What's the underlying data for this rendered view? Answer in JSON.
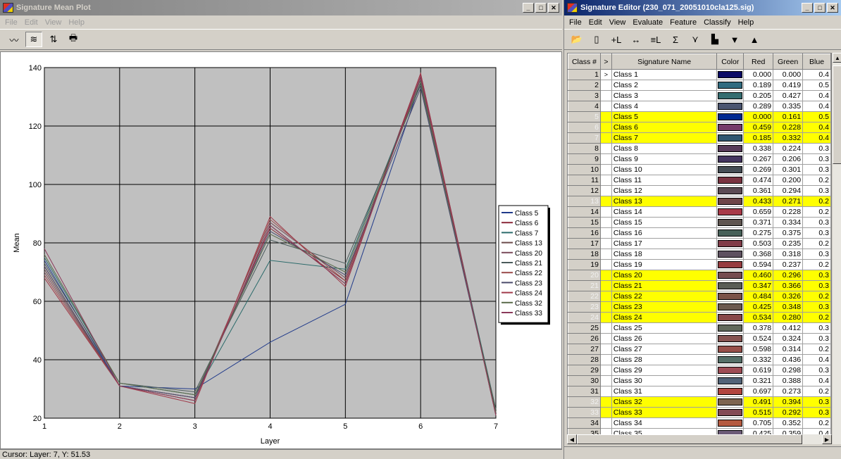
{
  "plot_window": {
    "title": "Signature Mean Plot",
    "menu": [
      "File",
      "Edit",
      "View",
      "Help"
    ],
    "toolbar": [
      {
        "icon": "single-mean-line-icon",
        "glyph": "〰"
      },
      {
        "icon": "multiple-mean-lines-icon",
        "glyph": "≋"
      },
      {
        "icon": "switch-arrows-icon",
        "glyph": "⇅"
      },
      {
        "icon": "printer-icon",
        "glyph": "🖶"
      }
    ],
    "status": "Cursor: Layer: 7, Y: 51.53"
  },
  "chart_data": {
    "type": "line",
    "xlabel": "Layer",
    "ylabel": "Mean",
    "xlim": [
      1,
      7
    ],
    "ylim": [
      20,
      140
    ],
    "x": [
      1,
      2,
      3,
      4,
      5,
      6,
      7
    ],
    "y_ticks": [
      20,
      40,
      60,
      80,
      100,
      120,
      140
    ],
    "grid": true,
    "background": "#c0c0c0",
    "legend_position": "right",
    "series": [
      {
        "name": "Class 5",
        "color": "#203a8a",
        "values": [
          74,
          31,
          30,
          46,
          59,
          135,
          22
        ]
      },
      {
        "name": "Class 6",
        "color": "#8a2a3a",
        "values": [
          72,
          31,
          27,
          85,
          67,
          138,
          22
        ]
      },
      {
        "name": "Class 7",
        "color": "#2a6a6a",
        "values": [
          75,
          32,
          28,
          74,
          71,
          136,
          23
        ]
      },
      {
        "name": "Class 13",
        "color": "#6a4a4a",
        "values": [
          71,
          31,
          26,
          86,
          66,
          137,
          21
        ]
      },
      {
        "name": "Class 20",
        "color": "#7a4a5a",
        "values": [
          70,
          31,
          27,
          87,
          68,
          136,
          22
        ]
      },
      {
        "name": "Class 21",
        "color": "#4a5a5a",
        "values": [
          73,
          32,
          29,
          81,
          73,
          134,
          23
        ]
      },
      {
        "name": "Class 22",
        "color": "#9a4a4a",
        "values": [
          69,
          31,
          26,
          88,
          67,
          137,
          21
        ]
      },
      {
        "name": "Class 23",
        "color": "#4a4a6a",
        "values": [
          72,
          31,
          27,
          84,
          69,
          133,
          22
        ]
      },
      {
        "name": "Class 24",
        "color": "#a03a4a",
        "values": [
          68,
          31,
          25,
          89,
          65,
          138,
          21
        ]
      },
      {
        "name": "Class 32",
        "color": "#5a6a4a",
        "values": [
          76,
          32,
          28,
          83,
          70,
          135,
          22
        ]
      },
      {
        "name": "Class 33",
        "color": "#8a3a5a",
        "values": [
          78,
          31,
          26,
          86,
          66,
          137,
          21
        ]
      }
    ]
  },
  "editor_window": {
    "title": "Signature Editor (230_071_20051010cla125.sig)",
    "menu": [
      "File",
      "Edit",
      "View",
      "Evaluate",
      "Feature",
      "Classify",
      "Help"
    ],
    "toolbar": [
      {
        "icon": "open-folder-icon",
        "glyph": "📂"
      },
      {
        "icon": "new-document-icon",
        "glyph": "▯"
      },
      {
        "icon": "add-signature-icon",
        "glyph": "+L"
      },
      {
        "icon": "replace-signature-icon",
        "glyph": "↔"
      },
      {
        "icon": "merge-signatures-icon",
        "glyph": "≡L"
      },
      {
        "icon": "statistics-icon",
        "glyph": "Σ"
      },
      {
        "icon": "mean-plot-icon",
        "glyph": "⋎"
      },
      {
        "icon": "histogram-icon",
        "glyph": "▙"
      },
      {
        "icon": "move-down-icon",
        "glyph": "▼"
      },
      {
        "icon": "move-up-icon",
        "glyph": "▲"
      }
    ],
    "columns": [
      "Class #",
      ">",
      "Signature Name",
      "Color",
      "Red",
      "Green",
      "Blue"
    ],
    "rows": [
      {
        "num": "1",
        "arrow": ">",
        "name": "Class 1",
        "color": "#0a0a66",
        "red": "0.000",
        "green": "0.000",
        "blue": "0.4",
        "sel": false
      },
      {
        "num": "2",
        "arrow": "",
        "name": "Class 2",
        "color": "#306b80",
        "red": "0.189",
        "green": "0.419",
        "blue": "0.5",
        "sel": false
      },
      {
        "num": "3",
        "arrow": "",
        "name": "Class 3",
        "color": "#346d70",
        "red": "0.205",
        "green": "0.427",
        "blue": "0.4",
        "sel": false
      },
      {
        "num": "4",
        "arrow": "",
        "name": "Class 4",
        "color": "#4a5570",
        "red": "0.289",
        "green": "0.335",
        "blue": "0.4",
        "sel": false
      },
      {
        "num": "5",
        "arrow": "",
        "name": "Class 5",
        "color": "#002990",
        "red": "0.000",
        "green": "0.161",
        "blue": "0.5",
        "sel": true
      },
      {
        "num": "6",
        "arrow": "",
        "name": "Class 6",
        "color": "#753a6a",
        "red": "0.459",
        "green": "0.228",
        "blue": "0.4",
        "sel": true
      },
      {
        "num": "7",
        "arrow": "",
        "name": "Class 7",
        "color": "#2f5570",
        "red": "0.185",
        "green": "0.332",
        "blue": "0.4",
        "sel": true
      },
      {
        "num": "8",
        "arrow": "",
        "name": "Class 8",
        "color": "#563958",
        "red": "0.338",
        "green": "0.224",
        "blue": "0.3",
        "sel": false
      },
      {
        "num": "9",
        "arrow": "",
        "name": "Class 9",
        "color": "#443560",
        "red": "0.267",
        "green": "0.206",
        "blue": "0.3",
        "sel": false
      },
      {
        "num": "10",
        "arrow": "",
        "name": "Class 10",
        "color": "#454d55",
        "red": "0.269",
        "green": "0.301",
        "blue": "0.3",
        "sel": false
      },
      {
        "num": "11",
        "arrow": "",
        "name": "Class 11",
        "color": "#793340",
        "red": "0.474",
        "green": "0.200",
        "blue": "0.2",
        "sel": false
      },
      {
        "num": "12",
        "arrow": "",
        "name": "Class 12",
        "color": "#5c4b55",
        "red": "0.361",
        "green": "0.294",
        "blue": "0.3",
        "sel": false
      },
      {
        "num": "13",
        "arrow": "",
        "name": "Class 13",
        "color": "#6e4548",
        "red": "0.433",
        "green": "0.271",
        "blue": "0.2",
        "sel": true
      },
      {
        "num": "14",
        "arrow": "",
        "name": "Class 14",
        "color": "#a83a48",
        "red": "0.659",
        "green": "0.228",
        "blue": "0.2",
        "sel": false
      },
      {
        "num": "15",
        "arrow": "",
        "name": "Class 15",
        "color": "#5f5550",
        "red": "0.371",
        "green": "0.334",
        "blue": "0.3",
        "sel": false
      },
      {
        "num": "16",
        "arrow": "",
        "name": "Class 16",
        "color": "#466058",
        "red": "0.275",
        "green": "0.375",
        "blue": "0.3",
        "sel": false
      },
      {
        "num": "17",
        "arrow": "",
        "name": "Class 17",
        "color": "#803c48",
        "red": "0.503",
        "green": "0.235",
        "blue": "0.2",
        "sel": false
      },
      {
        "num": "18",
        "arrow": "",
        "name": "Class 18",
        "color": "#5e5160",
        "red": "0.368",
        "green": "0.318",
        "blue": "0.3",
        "sel": false
      },
      {
        "num": "19",
        "arrow": "",
        "name": "Class 19",
        "color": "#973c40",
        "red": "0.594",
        "green": "0.237",
        "blue": "0.2",
        "sel": false
      },
      {
        "num": "20",
        "arrow": "",
        "name": "Class 20",
        "color": "#754b50",
        "red": "0.460",
        "green": "0.296",
        "blue": "0.3",
        "sel": true
      },
      {
        "num": "21",
        "arrow": "",
        "name": "Class 21",
        "color": "#595d55",
        "red": "0.347",
        "green": "0.366",
        "blue": "0.3",
        "sel": true
      },
      {
        "num": "22",
        "arrow": "",
        "name": "Class 22",
        "color": "#7b5348",
        "red": "0.484",
        "green": "0.326",
        "blue": "0.2",
        "sel": true
      },
      {
        "num": "23",
        "arrow": "",
        "name": "Class 23",
        "color": "#6c5950",
        "red": "0.425",
        "green": "0.348",
        "blue": "0.3",
        "sel": true
      },
      {
        "num": "24",
        "arrow": "",
        "name": "Class 24",
        "color": "#884748",
        "red": "0.534",
        "green": "0.280",
        "blue": "0.2",
        "sel": true
      },
      {
        "num": "25",
        "arrow": "",
        "name": "Class 25",
        "color": "#60695a",
        "red": "0.378",
        "green": "0.412",
        "blue": "0.3",
        "sel": false
      },
      {
        "num": "26",
        "arrow": "",
        "name": "Class 26",
        "color": "#865350",
        "red": "0.524",
        "green": "0.324",
        "blue": "0.3",
        "sel": false
      },
      {
        "num": "27",
        "arrow": "",
        "name": "Class 27",
        "color": "#98504a",
        "red": "0.598",
        "green": "0.314",
        "blue": "0.2",
        "sel": false
      },
      {
        "num": "28",
        "arrow": "",
        "name": "Class 28",
        "color": "#556f68",
        "red": "0.332",
        "green": "0.436",
        "blue": "0.4",
        "sel": false
      },
      {
        "num": "29",
        "arrow": "",
        "name": "Class 29",
        "color": "#9e4c55",
        "red": "0.619",
        "green": "0.298",
        "blue": "0.3",
        "sel": false
      },
      {
        "num": "30",
        "arrow": "",
        "name": "Class 30",
        "color": "#526378",
        "red": "0.321",
        "green": "0.388",
        "blue": "0.4",
        "sel": false
      },
      {
        "num": "31",
        "arrow": "",
        "name": "Class 31",
        "color": "#b24640",
        "red": "0.697",
        "green": "0.273",
        "blue": "0.2",
        "sel": false
      },
      {
        "num": "32",
        "arrow": "",
        "name": "Class 32",
        "color": "#7d6450",
        "red": "0.491",
        "green": "0.394",
        "blue": "0.3",
        "sel": true
      },
      {
        "num": "33",
        "arrow": "",
        "name": "Class 33",
        "color": "#834a55",
        "red": "0.515",
        "green": "0.292",
        "blue": "0.3",
        "sel": true
      },
      {
        "num": "34",
        "arrow": "",
        "name": "Class 34",
        "color": "#b45a40",
        "red": "0.705",
        "green": "0.352",
        "blue": "0.2",
        "sel": false
      },
      {
        "num": "35",
        "arrow": "",
        "name": "Class 35",
        "color": "#6d5c78",
        "red": "0.425",
        "green": "0.359",
        "blue": "0.4",
        "sel": false
      }
    ]
  }
}
